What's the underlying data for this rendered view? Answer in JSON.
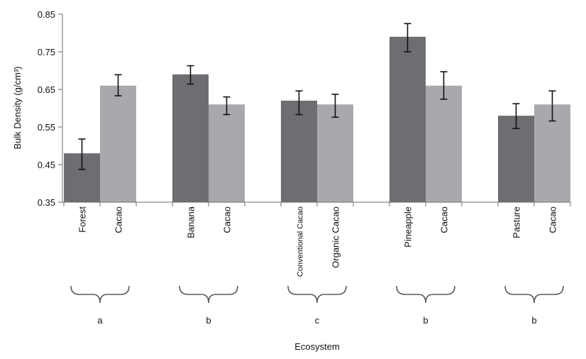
{
  "chart_data": {
    "type": "bar",
    "xlabel": "Ecosystem",
    "ylabel": "Bulk Density (g/cm³)",
    "ylim": [
      0.35,
      0.85
    ],
    "yticks": [
      "0.35",
      "0.45",
      "0.55",
      "0.65",
      "0.75",
      "0.85"
    ],
    "grid": false,
    "legend": "none",
    "colors": {
      "dark": "#6d6e71",
      "light": "#a7a9ac",
      "error_bar": "#111111"
    },
    "groups": [
      {
        "letter": "a",
        "bars": [
          {
            "label": "Forest",
            "value": 0.48,
            "err_low": 0.437,
            "err_high": 0.518,
            "shade": "dark"
          },
          {
            "label": "Cacao",
            "value": 0.66,
            "err_low": 0.633,
            "err_high": 0.689,
            "shade": "light"
          }
        ]
      },
      {
        "letter": "b",
        "bars": [
          {
            "label": "Banana",
            "value": 0.69,
            "err_low": 0.664,
            "err_high": 0.713,
            "shade": "dark"
          },
          {
            "label": "Cacao",
            "value": 0.61,
            "err_low": 0.583,
            "err_high": 0.63,
            "shade": "light"
          }
        ]
      },
      {
        "letter": "c",
        "bars": [
          {
            "label": "Conventional Cacao",
            "value": 0.62,
            "err_low": 0.583,
            "err_high": 0.646,
            "shade": "dark"
          },
          {
            "label": "Organic Cacao",
            "value": 0.61,
            "err_low": 0.576,
            "err_high": 0.637,
            "shade": "light"
          }
        ]
      },
      {
        "letter": "b",
        "bars": [
          {
            "label": "Pineapple",
            "value": 0.79,
            "err_low": 0.75,
            "err_high": 0.825,
            "shade": "dark"
          },
          {
            "label": "Cacao",
            "value": 0.66,
            "err_low": 0.624,
            "err_high": 0.697,
            "shade": "light"
          }
        ]
      },
      {
        "letter": "b",
        "bars": [
          {
            "label": "Pasture",
            "value": 0.58,
            "err_low": 0.546,
            "err_high": 0.612,
            "shade": "dark"
          },
          {
            "label": "Cacao",
            "value": 0.61,
            "err_low": 0.566,
            "err_high": 0.646,
            "shade": "light"
          }
        ]
      }
    ]
  }
}
